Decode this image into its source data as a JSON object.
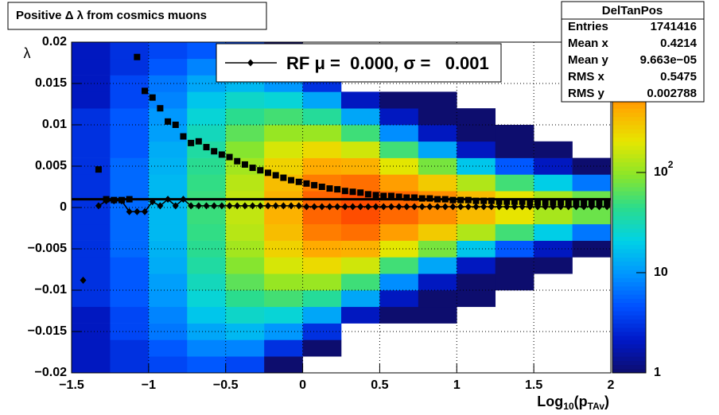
{
  "chart_data": {
    "type": "heatmap",
    "title": "Positive Δ λ from cosmics muons",
    "ylabel": "λ",
    "xlabel": [
      "Log",
      "10",
      "(p",
      "TAv",
      ")"
    ],
    "xlim": [
      -1.5,
      2
    ],
    "ylim": [
      -0.02,
      0.02
    ],
    "xticks": [
      {
        "value": -1.5,
        "label": "−1.5"
      },
      {
        "value": -1,
        "label": "−1"
      },
      {
        "value": -0.5,
        "label": "−0.5"
      },
      0,
      0.5,
      1,
      1.5,
      2
    ],
    "yticks": [
      {
        "value": -0.02,
        "label": "−0.02"
      },
      {
        "value": -0.015,
        "label": "−0.015"
      },
      {
        "value": -0.01,
        "label": "−0.01"
      },
      {
        "value": -0.005,
        "label": "−0.005"
      },
      0,
      0.005,
      0.01,
      0.015,
      0.02
    ],
    "grid": true,
    "zlim": [
      1,
      2000
    ],
    "zlog": true,
    "zticks": [
      1,
      10,
      {
        "value": 100,
        "label": [
          "10",
          "2"
        ]
      }
    ],
    "palette": [
      "#0d0d6e",
      "#0019c8",
      "#0050ff",
      "#0096ff",
      "#00d2e6",
      "#2bdc8c",
      "#8ce628",
      "#e6e600",
      "#ffaa00",
      "#ff5000",
      "#e60000"
    ],
    "xbins": [
      -1.5,
      -1.25,
      -1,
      -0.75,
      -0.5,
      -0.25,
      0,
      0.25,
      0.5,
      0.75,
      1,
      1.25,
      1.5,
      1.75,
      2
    ],
    "ybins": [
      -0.02,
      -0.018,
      -0.016,
      -0.014,
      -0.012,
      -0.01,
      -0.008,
      -0.006,
      -0.004,
      -0.002,
      0,
      0.002,
      0.004,
      0.006,
      0.008,
      0.01,
      0.012,
      0.014,
      0.016,
      0.018,
      0.02
    ],
    "z": [
      [
        2,
        2,
        2,
        2,
        3,
        3,
        3,
        3,
        3,
        3,
        3,
        3,
        3,
        3,
        3,
        3,
        2,
        2,
        2,
        2
      ],
      [
        3,
        3,
        4,
        4,
        5,
        5,
        5,
        6,
        6,
        6,
        6,
        6,
        6,
        5,
        5,
        5,
        4,
        4,
        3,
        3
      ],
      [
        4,
        5,
        7,
        8,
        10,
        11,
        13,
        14,
        15,
        15,
        15,
        15,
        14,
        13,
        11,
        10,
        8,
        7,
        5,
        4
      ],
      [
        5,
        8,
        12,
        18,
        24,
        30,
        37,
        43,
        47,
        50,
        50,
        47,
        43,
        37,
        30,
        24,
        18,
        12,
        8,
        5
      ],
      [
        4,
        8,
        15,
        27,
        44,
        66,
        91,
        116,
        137,
        149,
        149,
        137,
        116,
        91,
        66,
        44,
        27,
        15,
        8,
        4
      ],
      [
        1,
        3,
        10,
        24,
        54,
        105,
        178,
        265,
        345,
        394,
        394,
        345,
        265,
        178,
        105,
        54,
        24,
        10,
        3,
        1
      ],
      [
        null,
        1,
        3,
        12,
        40,
        108,
        238,
        431,
        641,
        781,
        781,
        641,
        431,
        238,
        108,
        40,
        12,
        3,
        1,
        null
      ],
      [
        null,
        null,
        null,
        2,
        12,
        52,
        168,
        400,
        720,
        964,
        964,
        720,
        400,
        168,
        52,
        12,
        2,
        null,
        null,
        null
      ],
      [
        null,
        null,
        null,
        1,
        2,
        9,
        53,
        199,
        486,
        757,
        757,
        486,
        199,
        53,
        9,
        2,
        1,
        null,
        null,
        null
      ],
      [
        null,
        null,
        null,
        1,
        1,
        2,
        12,
        81,
        292,
        554,
        554,
        292,
        81,
        12,
        2,
        1,
        1,
        null,
        null,
        null
      ],
      [
        null,
        null,
        null,
        null,
        1,
        1,
        2,
        18,
        130,
        353,
        353,
        130,
        18,
        2,
        1,
        1,
        null,
        null,
        null,
        null
      ],
      [
        null,
        null,
        null,
        null,
        null,
        1,
        1,
        5,
        53,
        210,
        210,
        53,
        5,
        1,
        1,
        null,
        null,
        null,
        null,
        null
      ],
      [
        null,
        null,
        null,
        null,
        null,
        null,
        1,
        2,
        20,
        120,
        120,
        20,
        2,
        1,
        null,
        null,
        null,
        null,
        null,
        null
      ],
      [
        null,
        null,
        null,
        null,
        null,
        null,
        null,
        1,
        7,
        74,
        74,
        7,
        1,
        null,
        null,
        null,
        null,
        null,
        null,
        null
      ]
    ],
    "x": [
      -1.425,
      -1.375,
      -1.325,
      -1.275,
      -1.225,
      -1.175,
      -1.125,
      -1.075,
      -1.025,
      -0.975,
      -0.925,
      -0.875,
      -0.825,
      -0.775,
      -0.725,
      -0.675,
      -0.625,
      -0.575,
      -0.525,
      -0.475,
      -0.425,
      -0.375,
      -0.325,
      -0.275,
      -0.225,
      -0.175,
      -0.125,
      -0.075,
      -0.025,
      0.025,
      0.075,
      0.125,
      0.175,
      0.225,
      0.275,
      0.325,
      0.375,
      0.425,
      0.475,
      0.525,
      0.575,
      0.625,
      0.675,
      0.725,
      0.775,
      0.825,
      0.875,
      0.925,
      0.975,
      1.025,
      1.075,
      1.125,
      1.175,
      1.225,
      1.275,
      1.325,
      1.375,
      1.425,
      1.475,
      1.525,
      1.575,
      1.625,
      1.675,
      1.725,
      1.775,
      1.825,
      1.875,
      1.925,
      1.975
    ],
    "series": [
      {
        "marker": "square",
        "color": "#000000",
        "values": [
          null,
          null,
          0.0046,
          0.001,
          0.0009,
          0.0009,
          0.001,
          0.0182,
          0.0141,
          0.0133,
          0.012,
          0.0104,
          0.01,
          0.0086,
          0.0078,
          0.008,
          0.0073,
          0.0068,
          0.0064,
          0.0061,
          0.0056,
          0.0052,
          0.0048,
          0.0045,
          0.0042,
          0.0039,
          0.0036,
          0.0033,
          0.0031,
          0.0029,
          0.0027,
          0.0025,
          0.0023,
          0.0022,
          0.002,
          0.0019,
          0.0018,
          0.0016,
          0.0015,
          0.0014,
          0.0014,
          0.0013,
          0.0012,
          0.0012,
          0.0011,
          0.0011,
          0.001,
          0.001,
          0.0009,
          0.0009,
          0.0009,
          0.0008,
          0.0008,
          0.0008,
          0.0007,
          0.0007,
          0.0007,
          0.0007,
          0.0006,
          0.0006,
          0.0006,
          0.0006,
          0.0006,
          0.0005,
          0.0005,
          0.0005,
          0.0005,
          0.0005,
          0.0005
        ]
      },
      {
        "marker": "diamond",
        "color": "#000000",
        "values": [
          -0.0088,
          null,
          0.0002,
          0.0008,
          0.0008,
          0.0008,
          -0.0005,
          -0.0005,
          -0.0005,
          0.0007,
          0.0002,
          0.001,
          0.0002,
          0.001,
          0.0002,
          0.0002,
          0.0002,
          0.0002,
          0.0002,
          0.0002,
          0.0002,
          0.0002,
          0.0002,
          0.0002,
          0.0002,
          0.0002,
          0.0002,
          0.0002,
          0.0002,
          0.0001,
          0.0001,
          0.0001,
          0.0001,
          0.0001,
          0.0001,
          0.0001,
          0.0001,
          0.0001,
          0.0001,
          0.0001,
          0.0001,
          0.0001,
          0.0001,
          0.0001,
          0.0001,
          0.0001,
          0.0001,
          0.0001,
          0.0001,
          0.0001,
          0.0001,
          0.0001,
          0.0001,
          0.0001,
          0.0001,
          0.0001,
          0.0001,
          0.0001,
          0.0001,
          0.0001,
          0.0001,
          0.0001,
          0.0001,
          0.0001,
          0.0001,
          0.0001,
          0.0001,
          0.0001,
          0.0001
        ]
      }
    ],
    "reference_line": 0.001,
    "legend": "RF μ =  0.000, σ =   0.001",
    "stats": {
      "title": "DelTanPos",
      "rows": [
        [
          "Entries",
          "1741416"
        ],
        [
          "Mean x",
          "0.4214"
        ],
        [
          "Mean y",
          "9.663e−05"
        ],
        [
          "RMS x",
          "0.5475"
        ],
        [
          "RMS y",
          "0.002788"
        ]
      ]
    }
  }
}
